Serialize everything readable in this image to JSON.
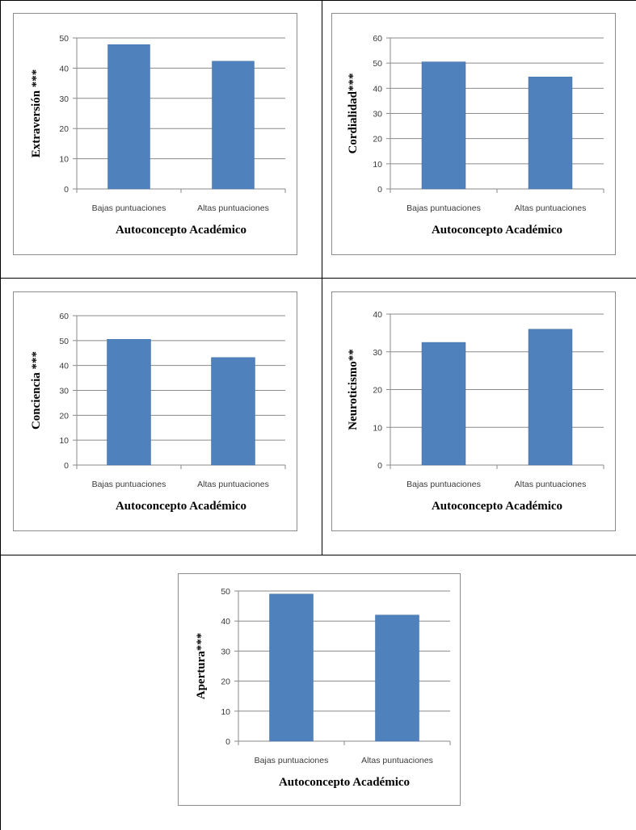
{
  "colors": {
    "bar": "#4f81bd",
    "bar_edge": "#3f6fa8",
    "gridline": "#8a8a8a",
    "axis": "#8a8a8a",
    "frame": "#8c8c8c"
  },
  "chart_data": [
    {
      "type": "bar",
      "categories": [
        "Bajas puntuaciones",
        "Altas puntuaciones"
      ],
      "values": [
        47.8,
        42.3
      ],
      "xlabel": "Autoconcepto Académico",
      "ylabel": "Extraversión ***",
      "ylim": [
        0,
        50
      ],
      "yticks": [
        0,
        10,
        20,
        30,
        40,
        50
      ],
      "grid": true
    },
    {
      "type": "bar",
      "categories": [
        "Bajas puntuaciones",
        "Altas puntuaciones"
      ],
      "values": [
        50.5,
        44.5
      ],
      "xlabel": "Autoconcepto Académico",
      "ylabel": "Cordialidad***",
      "ylim": [
        0,
        60
      ],
      "yticks": [
        0,
        10,
        20,
        30,
        40,
        50,
        60
      ],
      "grid": true
    },
    {
      "type": "bar",
      "categories": [
        "Bajas puntuaciones",
        "Altas puntuaciones"
      ],
      "values": [
        50.5,
        43.2
      ],
      "xlabel": "Autoconcepto Académico",
      "ylabel": "Conciencia ***",
      "ylim": [
        0,
        60
      ],
      "yticks": [
        0,
        10,
        20,
        30,
        40,
        50,
        60
      ],
      "grid": true
    },
    {
      "type": "bar",
      "categories": [
        "Bajas puntuaciones",
        "Altas puntuaciones"
      ],
      "values": [
        32.5,
        36.0
      ],
      "xlabel": "Autoconcepto Académico",
      "ylabel": "Neuroticismo**",
      "ylim": [
        0,
        40
      ],
      "yticks": [
        0,
        10,
        20,
        30,
        40
      ],
      "grid": true
    },
    {
      "type": "bar",
      "categories": [
        "Bajas puntuaciones",
        "Altas puntuaciones"
      ],
      "values": [
        49.0,
        42.0
      ],
      "xlabel": "Autoconcepto Académico",
      "ylabel": "Apertura***",
      "ylim": [
        0,
        50
      ],
      "yticks": [
        0,
        10,
        20,
        30,
        40,
        50
      ],
      "grid": true
    }
  ]
}
